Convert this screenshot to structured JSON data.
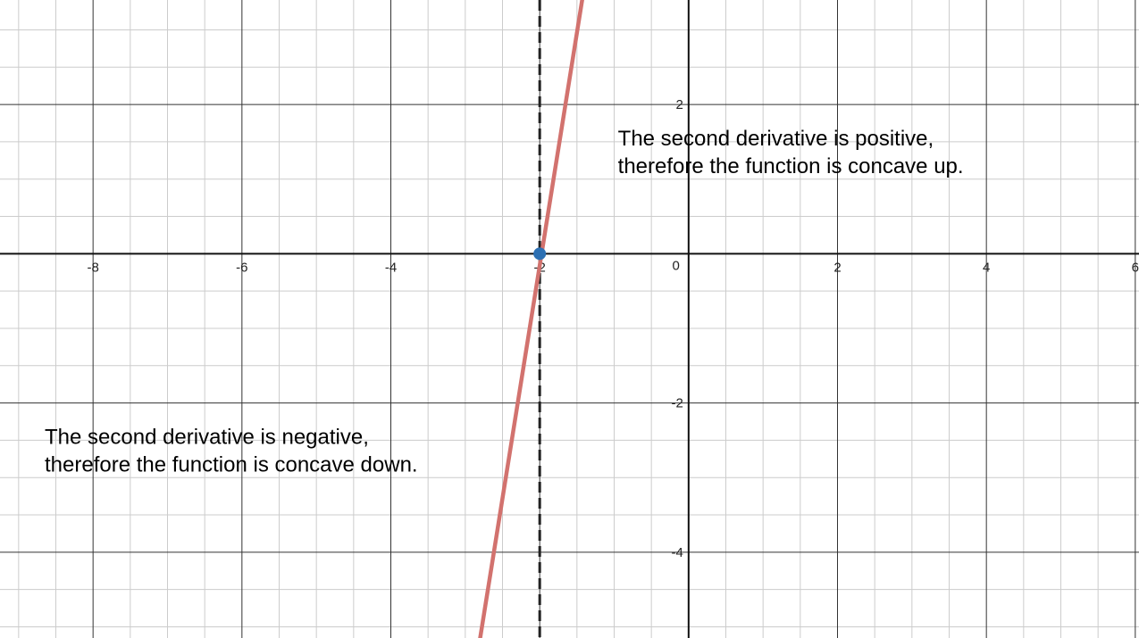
{
  "chart_data": {
    "type": "line",
    "title": "",
    "xlabel": "",
    "ylabel": "",
    "xlim": [
      -9.25,
      6.05
    ],
    "ylim": [
      -5.15,
      3.4
    ],
    "grid": true,
    "minor_grid_step": 0.5,
    "major_grid_step": 2,
    "x_ticks": [
      {
        "value": -8,
        "label": "-8"
      },
      {
        "value": -6,
        "label": "-6"
      },
      {
        "value": -4,
        "label": "-4"
      },
      {
        "value": -2,
        "label": "-2"
      },
      {
        "value": 2,
        "label": "2"
      },
      {
        "value": 4,
        "label": "4"
      },
      {
        "value": 6,
        "label": "6"
      }
    ],
    "y_ticks": [
      {
        "value": 2,
        "label": "2"
      },
      {
        "value": -2,
        "label": "-2"
      },
      {
        "value": -4,
        "label": "-4"
      }
    ],
    "origin_label": "0",
    "series": [
      {
        "type": "line",
        "color": "#d2726e",
        "x": [
          -2.8,
          -1.43
        ],
        "y": [
          -5.15,
          3.4
        ]
      }
    ],
    "vertical_line": {
      "x": -2,
      "style": "dashed",
      "color": "#222222"
    },
    "point": {
      "x": -2,
      "y": 0,
      "color": "#2d70b3"
    },
    "annotations": [
      {
        "lines": [
          "The second derivative is positive,",
          "therefore the function is concave up."
        ],
        "x": -0.95,
        "y": 1.45
      },
      {
        "lines": [
          "The second derivative is negative,",
          "therefore the function is concave down."
        ],
        "x": -8.65,
        "y": -2.55
      }
    ]
  }
}
